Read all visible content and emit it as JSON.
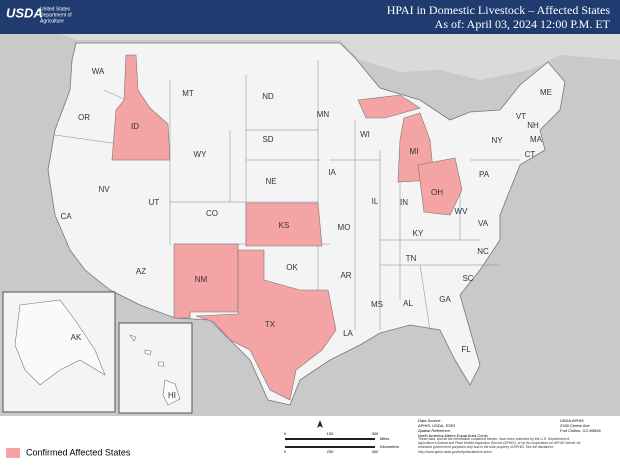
{
  "header": {
    "logo": "USDA",
    "agency": [
      "United States",
      "Department of",
      "Agriculture"
    ],
    "title": "HPAI in Domestic Livestock – Affected States",
    "subtitle": "As of: April 03, 2024 12:00 P.M. ET"
  },
  "map": {
    "states": [
      "WA",
      "OR",
      "CA",
      "NV",
      "ID",
      "MT",
      "WY",
      "UT",
      "CO",
      "AZ",
      "NM",
      "ND",
      "SD",
      "NE",
      "KS",
      "OK",
      "TX",
      "MN",
      "IA",
      "MO",
      "AR",
      "LA",
      "WI",
      "IL",
      "MI",
      "IN",
      "OH",
      "KY",
      "TN",
      "MS",
      "AL",
      "GA",
      "FL",
      "SC",
      "NC",
      "VA",
      "WV",
      "PA",
      "NY",
      "VT",
      "NH",
      "ME",
      "MA",
      "CT",
      "AK",
      "HI"
    ],
    "affected_states": [
      "ID",
      "MI",
      "OH",
      "KS",
      "NM",
      "TX"
    ]
  },
  "legend": {
    "label": "Confirmed Affected States"
  },
  "footer": {
    "data_source": [
      "Data Source:",
      "APHIS, USDA, ESRI",
      "Spatial Reference:",
      "North America Albers Equal Area Conic"
    ],
    "scale": {
      "miles_label": "Miles",
      "miles_ticks": [
        "0",
        "150",
        "300"
      ],
      "km_label": "Kilometers",
      "km_ticks": [
        "0",
        "200",
        "400"
      ]
    },
    "address": [
      "USDA APHIS",
      "2150 Centre Ave",
      "Fort Collins, CO 80526"
    ],
    "disclaimer": "These data, and all the information contained therein, have been collected by the U.S. Department of Agriculture's Animal and Plant Health Inspection Service (APHIS), or by its cooperators on APHIS' behalf, for restricted government purposes only and is the sole property of APHIS. See full disclaimer: http://www.aphis.usda.gov/help/disclaimers.shtml"
  }
}
